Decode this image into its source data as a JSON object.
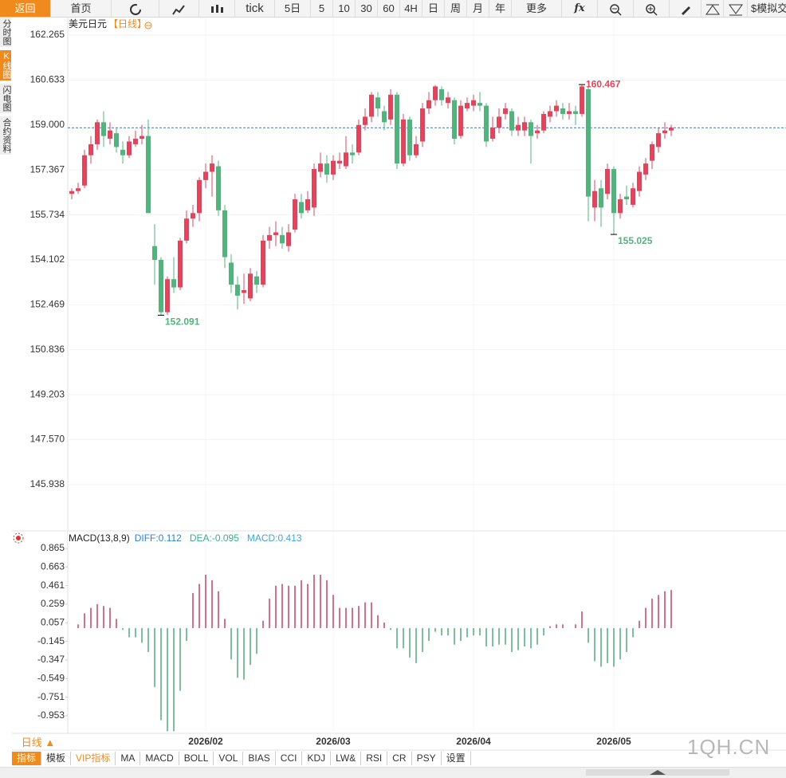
{
  "toolbar": [
    "返回",
    "首页",
    "tick",
    "5日",
    "5",
    "10",
    "30",
    "60",
    "4H",
    "日",
    "周",
    "月",
    "年",
    "更多",
    "fx",
    "$模拟交易"
  ],
  "side_tabs": [
    "分时图",
    "K线图",
    "闪电图",
    "合约资料"
  ],
  "chart_data": [
    {
      "type": "candlestick",
      "title": "美元日元",
      "subtitle": "【日线】",
      "categories": [
        null,
        null,
        null,
        null,
        null,
        null,
        null,
        null,
        null,
        null,
        null,
        null,
        null,
        null,
        null,
        null,
        null,
        null,
        null,
        null,
        null,
        "2026/02",
        null,
        null,
        null,
        null,
        null,
        null,
        null,
        null,
        null,
        null,
        null,
        null,
        null,
        null,
        null,
        null,
        null,
        null,
        null,
        "2026/03",
        null,
        null,
        null,
        null,
        null,
        null,
        null,
        null,
        null,
        null,
        null,
        null,
        null,
        null,
        null,
        null,
        null,
        null,
        null,
        null,
        null,
        "2026/04",
        null,
        null,
        null,
        null,
        null,
        null,
        null,
        null,
        null,
        null,
        null,
        null,
        null,
        null,
        null,
        null,
        null,
        null,
        null,
        null,
        null,
        "2026/05",
        null,
        null,
        null,
        null,
        null,
        null,
        null,
        null,
        null
      ],
      "open": [
        156.5,
        156.6,
        156.8,
        157.9,
        158.3,
        159.1,
        158.5,
        158.7,
        158.1,
        157.9,
        158.3,
        158.5,
        158.6,
        154.6,
        154.1,
        152.2,
        153.4,
        153.1,
        154.8,
        155.6,
        155.8,
        157.0,
        157.3,
        157.5,
        155.9,
        154.0,
        153.2,
        152.9,
        152.7,
        153.5,
        153.2,
        154.8,
        155.0,
        155.0,
        154.6,
        155.2,
        156.2,
        155.9,
        156.0,
        157.3,
        157.6,
        157.2,
        157.6,
        157.5,
        158.0,
        158.0,
        159.0,
        159.3,
        160.0,
        159.5,
        159.2,
        160.1,
        157.6,
        159.2,
        157.9,
        158.4,
        159.6,
        159.9,
        160.3,
        159.8,
        159.9,
        158.6,
        159.6,
        159.7,
        159.8,
        159.7,
        158.5,
        158.9,
        159.4,
        159.5,
        158.8,
        158.8,
        159.1,
        158.7,
        158.8,
        159.3,
        159.5,
        159.6,
        159.4,
        159.5,
        159.4,
        160.3,
        156.0,
        156.7,
        156.5,
        157.4,
        155.8,
        156.4,
        156.1,
        156.6,
        157.2,
        157.7,
        158.2,
        158.7,
        158.8
      ],
      "high": [
        156.7,
        156.9,
        158.1,
        158.6,
        159.2,
        159.5,
        159.1,
        158.9,
        158.4,
        158.6,
        158.8,
        159.0,
        159.2,
        155.4,
        154.2,
        153.5,
        154.2,
        154.9,
        155.9,
        156.1,
        157.1,
        157.6,
        157.9,
        157.7,
        156.1,
        154.3,
        153.5,
        153.6,
        153.8,
        153.7,
        155.0,
        155.3,
        155.5,
        155.3,
        155.4,
        156.5,
        156.5,
        156.6,
        157.6,
        158.0,
        157.9,
        157.9,
        158.0,
        158.6,
        158.3,
        159.2,
        159.6,
        160.2,
        160.2,
        159.7,
        160.3,
        160.2,
        159.4,
        159.3,
        158.6,
        159.8,
        160.2,
        160.45,
        160.4,
        160.2,
        160.0,
        159.9,
        160.0,
        160.1,
        160.2,
        159.8,
        159.3,
        159.6,
        159.8,
        159.6,
        159.3,
        159.3,
        159.2,
        159.0,
        159.5,
        159.7,
        159.9,
        159.8,
        159.8,
        159.7,
        160.467,
        160.4,
        157.0,
        157.0,
        157.6,
        157.5,
        156.5,
        156.8,
        156.9,
        157.5,
        157.8,
        158.4,
        158.9,
        159.1,
        159.0
      ],
      "low": [
        156.3,
        156.5,
        156.7,
        157.6,
        158.1,
        158.2,
        158.3,
        158.0,
        157.6,
        157.8,
        158.2,
        158.3,
        155.8,
        153.2,
        152.091,
        152.1,
        152.9,
        153.0,
        154.7,
        155.3,
        155.5,
        156.7,
        156.4,
        155.7,
        153.8,
        152.9,
        152.3,
        152.5,
        152.6,
        152.9,
        153.1,
        154.5,
        154.6,
        154.5,
        154.4,
        155.1,
        155.6,
        155.8,
        155.7,
        157.1,
        156.9,
        157.0,
        157.4,
        157.4,
        157.6,
        157.9,
        158.8,
        159.1,
        159.3,
        158.8,
        159.0,
        157.4,
        157.5,
        157.7,
        157.8,
        158.2,
        159.4,
        159.7,
        159.7,
        159.6,
        158.3,
        158.5,
        159.5,
        159.5,
        159.5,
        158.2,
        158.4,
        158.7,
        159.2,
        158.6,
        158.6,
        158.6,
        157.6,
        158.5,
        158.7,
        159.1,
        159.3,
        159.2,
        159.2,
        159.0,
        159.3,
        155.5,
        155.5,
        155.3,
        156.3,
        155.025,
        155.6,
        156.1,
        156.0,
        156.4,
        157.0,
        157.4,
        158.0,
        158.5,
        158.6
      ],
      "close": [
        156.6,
        156.7,
        157.9,
        158.3,
        159.1,
        158.6,
        158.8,
        158.2,
        157.9,
        158.4,
        158.5,
        158.6,
        155.8,
        154.1,
        152.2,
        153.4,
        153.1,
        154.8,
        155.6,
        155.8,
        157.0,
        157.3,
        157.6,
        155.9,
        154.2,
        153.2,
        152.8,
        153.0,
        153.6,
        153.2,
        154.8,
        155.0,
        155.1,
        154.7,
        155.1,
        156.3,
        155.8,
        156.3,
        157.4,
        157.6,
        157.2,
        157.7,
        157.7,
        158.0,
        157.9,
        159.0,
        159.3,
        160.1,
        159.6,
        159.1,
        160.1,
        157.6,
        159.2,
        157.9,
        158.3,
        159.6,
        159.9,
        160.4,
        159.9,
        160.0,
        158.5,
        159.7,
        159.8,
        159.9,
        159.7,
        158.4,
        158.9,
        159.3,
        159.6,
        158.8,
        159.0,
        159.1,
        158.6,
        158.8,
        159.4,
        159.5,
        159.7,
        159.4,
        159.5,
        159.4,
        160.4,
        156.4,
        156.6,
        156.0,
        157.4,
        155.8,
        156.3,
        156.3,
        156.7,
        157.3,
        157.6,
        158.3,
        158.7,
        158.8,
        158.9
      ],
      "up_color": "#e2445c",
      "down_color": "#52b47c",
      "last_color": "#3a78c4",
      "ylim": [
        144.286,
        162.265
      ],
      "yticks": [
        162.265,
        160.633,
        {
          "value": 159,
          "label": "159.000"
        },
        157.367,
        155.734,
        154.102,
        152.469,
        150.836,
        149.203,
        {
          "value": 147.57,
          "label": "147.570"
        },
        145.938
      ],
      "grid": true,
      "annotations": [
        {
          "value": 160.467,
          "label": "160.467"
        },
        {
          "value": 152.091,
          "label": "152.091"
        },
        {
          "value": 155.025,
          "label": "155.025"
        }
      ]
    },
    {
      "type": "macd",
      "title": "MACD(13,8,9)",
      "series": [
        {
          "name": "DIFF:0.112",
          "color": "#2f7fd8",
          "values": [
            0.1,
            0.14,
            0.24,
            0.31,
            0.37,
            0.39,
            0.4,
            0.36,
            0.31,
            0.28,
            0.26,
            0.2,
            0.11,
            -0.17,
            -0.45,
            -0.67,
            -0.78,
            -0.62,
            -0.41,
            -0.19,
            -0.06,
            0.07,
            0.1,
            -0.02,
            -0.19,
            -0.38,
            -0.49,
            -0.54,
            -0.51,
            -0.49,
            -0.32,
            -0.17,
            -0.06,
            0,
            0.05,
            0.11,
            0.2,
            0.24,
            0.37,
            0.43,
            0.46,
            0.43,
            0.42,
            0.46,
            0.5,
            0.55,
            0.6,
            0.63,
            0.59,
            0.56,
            0.52,
            0.4,
            0.37,
            0.29,
            0.24,
            0.28,
            0.32,
            0.36,
            0.33,
            0.31,
            0.24,
            0.24,
            0.24,
            0.23,
            0.21,
            0.12,
            0.08,
            0.07,
            0.05,
            -0.01,
            -0.03,
            -0.03,
            -0.06,
            -0.06,
            -0.03,
            0.01,
            0.03,
            0.04,
            0.03,
            0.05,
            0.14,
            -0.06,
            -0.23,
            -0.32,
            -0.36,
            -0.42,
            -0.42,
            -0.41,
            -0.35,
            -0.26,
            -0.17,
            -0.09,
            -0.02,
            0.05,
            0.112
          ]
        },
        {
          "name": "DEA:-0.095",
          "color": "#3bae8c",
          "values": [
            0.1,
            0.12,
            0.16,
            0.2,
            0.24,
            0.27,
            0.29,
            0.31,
            0.32,
            0.33,
            0.31,
            0.28,
            0.24,
            0.15,
            0.05,
            -0.06,
            -0.17,
            -0.28,
            -0.34,
            -0.38,
            -0.39,
            -0.37,
            -0.32,
            -0.28,
            -0.24,
            -0.21,
            -0.22,
            -0.26,
            -0.31,
            -0.35,
            -0.36,
            -0.33,
            -0.29,
            -0.24,
            -0.18,
            -0.12,
            -0.06,
            0,
            0.08,
            0.14,
            0.2,
            0.25,
            0.31,
            0.35,
            0.39,
            0.43,
            0.46,
            0.49,
            0.52,
            0.53,
            0.53,
            0.51,
            0.48,
            0.45,
            0.43,
            0.41,
            0.39,
            0.38,
            0.37,
            0.35,
            0.33,
            0.31,
            0.29,
            0.27,
            0.25,
            0.22,
            0.18,
            0.16,
            0.14,
            0.12,
            0.09,
            0.07,
            0.05,
            0.03,
            0.01,
            0,
            0.01,
            0.02,
            0.03,
            0.03,
            0.05,
            0.02,
            -0.05,
            -0.11,
            -0.17,
            -0.21,
            -0.25,
            -0.28,
            -0.3,
            -0.3,
            -0.28,
            -0.25,
            -0.2,
            -0.15,
            -0.095
          ]
        },
        {
          "name": "MACD:0.413",
          "type": "bar",
          "color": "#3ea6d8",
          "up_color": "#c9415f",
          "down_color": "#4fae7a",
          "values": [
            0,
            0.04,
            0.16,
            0.22,
            0.26,
            0.24,
            0.22,
            0.1,
            -0.02,
            -0.1,
            -0.1,
            -0.16,
            -0.26,
            -0.64,
            -1.0,
            -1.12,
            -1.12,
            -0.68,
            -0.14,
            0.38,
            0.48,
            0.58,
            0.52,
            0.4,
            0.1,
            -0.34,
            -0.54,
            -0.56,
            -0.4,
            -0.28,
            0.08,
            0.32,
            0.46,
            0.48,
            0.46,
            0.46,
            0.52,
            0.48,
            0.58,
            0.58,
            0.52,
            0.36,
            0.22,
            0.22,
            0.22,
            0.24,
            0.28,
            0.28,
            0.14,
            0.06,
            -0.02,
            -0.22,
            -0.22,
            -0.32,
            -0.38,
            -0.26,
            -0.14,
            -0.04,
            -0.08,
            -0.08,
            -0.18,
            -0.14,
            -0.1,
            -0.08,
            -0.08,
            -0.2,
            -0.2,
            -0.18,
            -0.18,
            -0.26,
            -0.24,
            -0.2,
            -0.22,
            -0.18,
            -0.08,
            0.02,
            0.04,
            0.04,
            0,
            0.04,
            0.18,
            -0.16,
            -0.36,
            -0.42,
            -0.38,
            -0.42,
            -0.34,
            -0.26,
            -0.1,
            0.08,
            0.22,
            0.32,
            0.36,
            0.4,
            0.413
          ]
        }
      ],
      "ylim": [
        -1.143,
        1.038
      ],
      "yticks": [
        0.865,
        0.663,
        0.461,
        0.259,
        0.057,
        -0.145,
        -0.347,
        -0.549,
        -0.751,
        -0.953
      ]
    }
  ],
  "period": "日线 ▲",
  "indicator_tabs": [
    "指标",
    "模板",
    "VIP指标",
    "MA",
    "MACD",
    "BOLL",
    "VOL",
    "BIAS",
    "CCI",
    "KDJ",
    "LW&",
    "RSI",
    "CR",
    "PSY",
    "设置"
  ],
  "watermark": "1QH.CN"
}
